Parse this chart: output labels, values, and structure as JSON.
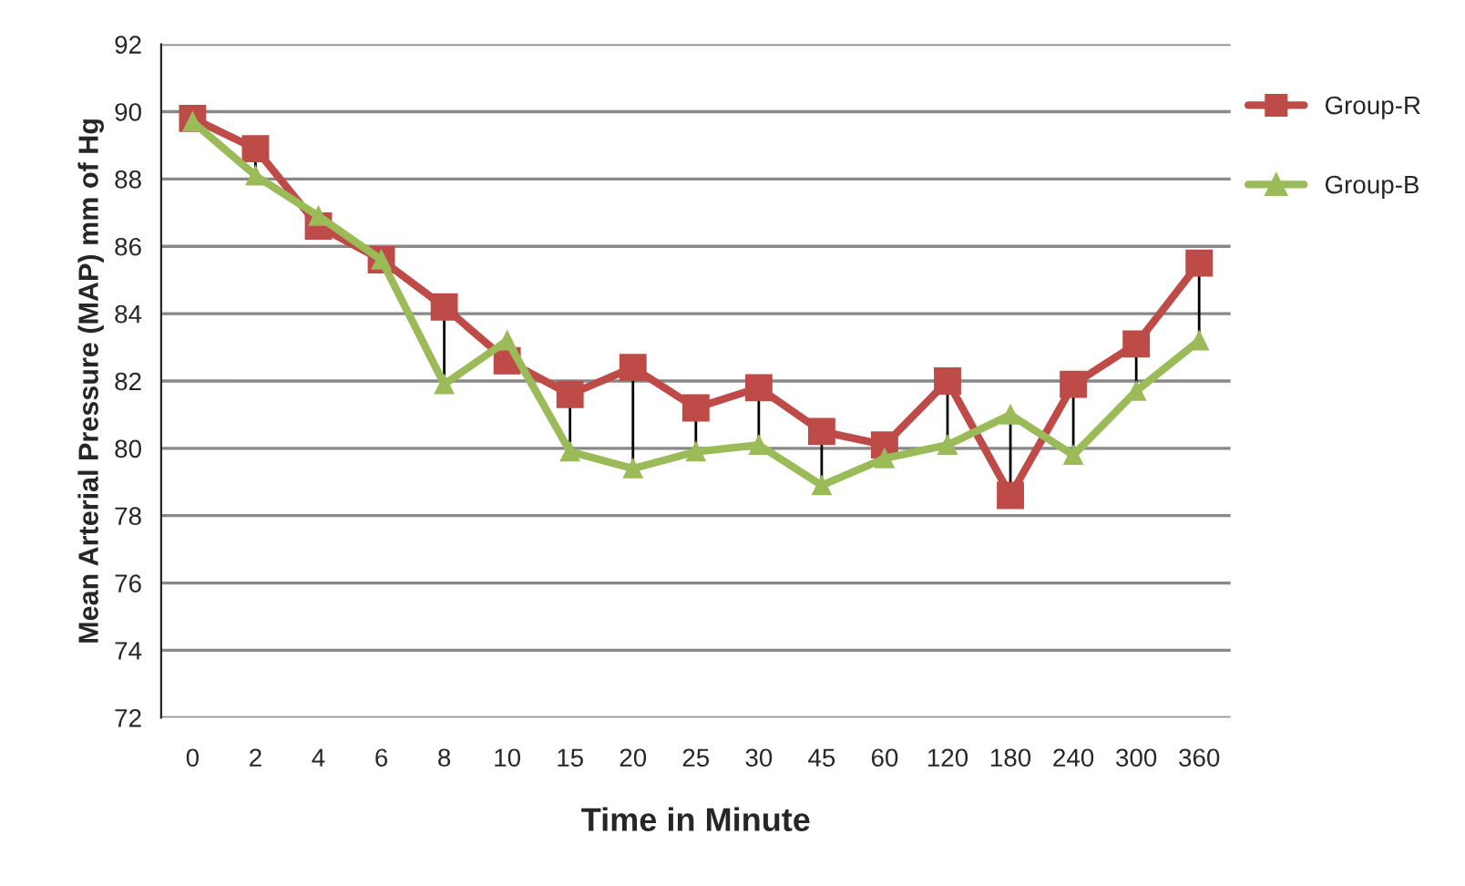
{
  "chart_data": {
    "type": "line",
    "xlabel": "Time in Minute",
    "ylabel": "Mean Arterial Pressure (MAP) mm of Hg",
    "categories": [
      "0",
      "2",
      "4",
      "6",
      "8",
      "10",
      "15",
      "20",
      "25",
      "30",
      "45",
      "60",
      "120",
      "180",
      "240",
      "300",
      "360"
    ],
    "series": [
      {
        "name": "Group-R",
        "color": "#be4b48",
        "marker": "square",
        "values": [
          89.8,
          88.9,
          86.6,
          85.6,
          84.2,
          82.6,
          81.6,
          82.4,
          81.2,
          81.8,
          80.5,
          80.1,
          82.0,
          78.6,
          81.9,
          83.1,
          85.5
        ]
      },
      {
        "name": "Group-B",
        "color": "#9bbb59",
        "marker": "triangle",
        "values": [
          89.7,
          88.1,
          86.9,
          85.6,
          81.9,
          83.2,
          79.9,
          79.4,
          79.9,
          80.1,
          78.9,
          79.7,
          80.1,
          81.0,
          79.8,
          81.7,
          83.2
        ]
      }
    ],
    "ylim": [
      72,
      92
    ],
    "yticks": [
      72,
      74,
      76,
      78,
      80,
      82,
      84,
      86,
      88,
      90,
      92
    ],
    "grid": "y",
    "legend": "top right",
    "line_style": "solid"
  }
}
